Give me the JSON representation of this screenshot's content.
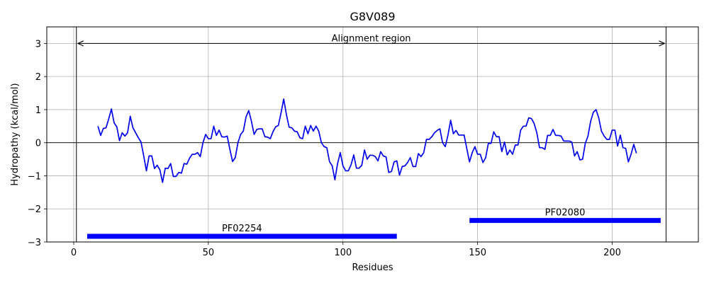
{
  "chart_data": {
    "type": "line",
    "title": "G8V089",
    "xlabel": "Residues",
    "ylabel": "Hydropathy (kcal/mol)",
    "xlim": [
      -10,
      232
    ],
    "ylim": [
      -3,
      3.5
    ],
    "x_ticks": [
      0,
      50,
      100,
      150,
      200
    ],
    "y_ticks": [
      -3,
      -2,
      -1,
      0,
      1,
      2,
      3
    ],
    "x_tick_labels": [
      "0",
      "50",
      "100",
      "150",
      "200"
    ],
    "y_tick_labels": [
      "−3",
      "−2",
      "−1",
      "0",
      "1",
      "2",
      "3"
    ],
    "grid": true,
    "line_color": "#0000ee",
    "domain_color": "#0000ff",
    "series": [
      {
        "x_start": 9,
        "values": [
          0.5,
          0.22,
          0.43,
          0.45,
          0.72,
          1.02,
          0.6,
          0.48,
          0.06,
          0.3,
          0.2,
          0.3,
          0.8,
          0.45,
          0.3,
          0.15,
          0.02,
          -0.4,
          -0.85,
          -0.4,
          -0.4,
          -0.78,
          -0.68,
          -0.82,
          -1.2,
          -0.77,
          -0.78,
          -0.63,
          -1.02,
          -1.02,
          -0.9,
          -0.92,
          -0.63,
          -0.65,
          -0.47,
          -0.35,
          -0.35,
          -0.3,
          -0.42,
          0.0,
          0.25,
          0.12,
          0.12,
          0.5,
          0.22,
          0.38,
          0.18,
          0.17,
          0.2,
          -0.2,
          -0.57,
          -0.45,
          0.0,
          0.25,
          0.35,
          0.78,
          0.97,
          0.65,
          0.25,
          0.4,
          0.42,
          0.42,
          0.18,
          0.17,
          0.12,
          0.33,
          0.48,
          0.52,
          0.9,
          1.32,
          0.85,
          0.47,
          0.45,
          0.35,
          0.33,
          0.15,
          0.12,
          0.5,
          0.27,
          0.52,
          0.35,
          0.5,
          0.35,
          0.0,
          -0.12,
          -0.15,
          -0.57,
          -0.7,
          -1.12,
          -0.63,
          -0.3,
          -0.7,
          -0.85,
          -0.85,
          -0.67,
          -0.37,
          -0.77,
          -0.77,
          -0.68,
          -0.22,
          -0.5,
          -0.38,
          -0.38,
          -0.42,
          -0.55,
          -0.27,
          -0.4,
          -0.43,
          -0.9,
          -0.87,
          -0.58,
          -0.55,
          -0.98,
          -0.72,
          -0.7,
          -0.6,
          -0.45,
          -0.72,
          -0.72,
          -0.33,
          -0.42,
          -0.3,
          0.1,
          0.1,
          0.18,
          0.3,
          0.37,
          0.42,
          0.0,
          -0.12,
          0.23,
          0.68,
          0.27,
          0.37,
          0.23,
          0.23,
          0.23,
          -0.18,
          -0.58,
          -0.3,
          -0.12,
          -0.35,
          -0.35,
          -0.6,
          -0.45,
          -0.02,
          -0.02,
          0.33,
          0.18,
          0.18,
          -0.27,
          0.02,
          -0.37,
          -0.22,
          -0.35,
          -0.07,
          -0.07,
          0.38,
          0.5,
          0.5,
          0.75,
          0.73,
          0.58,
          0.3,
          -0.15,
          -0.15,
          -0.2,
          0.22,
          0.22,
          0.4,
          0.22,
          0.22,
          0.2,
          0.05,
          0.05,
          0.05,
          0.02,
          -0.4,
          -0.27,
          -0.52,
          -0.5,
          -0.02,
          0.2,
          0.65,
          0.92,
          1.0,
          0.75,
          0.35,
          0.2,
          0.1,
          0.1,
          0.38,
          0.38,
          -0.1,
          0.23,
          -0.15,
          -0.17,
          -0.58,
          -0.35,
          -0.05,
          -0.32
        ]
      }
    ],
    "hlines": [
      0
    ],
    "vlines": [
      1,
      220
    ],
    "alignment_region": {
      "label": "Alignment region",
      "start": 1,
      "end": 220,
      "y": 3.0
    },
    "domains": [
      {
        "label": "PF02254",
        "start": 5,
        "end": 120,
        "y": -2.83
      },
      {
        "label": "PF02080",
        "start": 147,
        "end": 218,
        "y": -2.35
      }
    ]
  }
}
